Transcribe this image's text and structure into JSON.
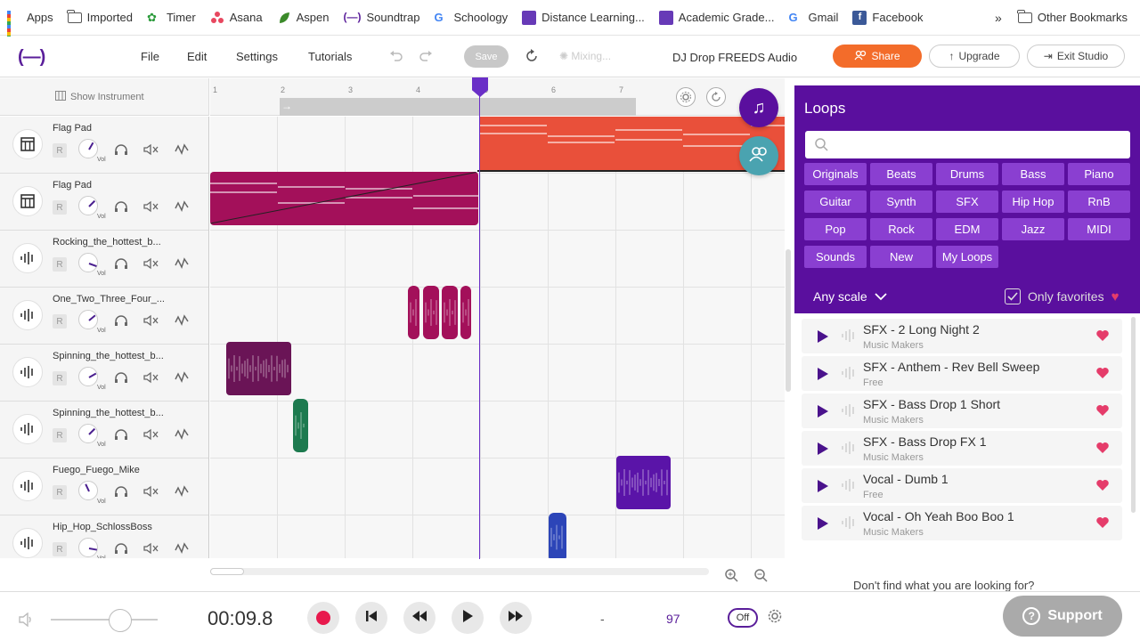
{
  "bookmarks": [
    {
      "label": "Apps",
      "icon": "apps-grid-icon"
    },
    {
      "label": "Imported",
      "icon": "folder-icon"
    },
    {
      "label": "Timer",
      "icon": "timer-icon"
    },
    {
      "label": "Asana",
      "icon": "asana-icon"
    },
    {
      "label": "Aspen",
      "icon": "aspen-icon"
    },
    {
      "label": "Soundtrap",
      "icon": "soundtrap-icon"
    },
    {
      "label": "Schoology",
      "icon": "google-icon"
    },
    {
      "label": "Distance Learning...",
      "icon": "forms-icon"
    },
    {
      "label": "Academic Grade...",
      "icon": "forms-icon"
    },
    {
      "label": "Gmail",
      "icon": "google-icon"
    },
    {
      "label": "Facebook",
      "icon": "facebook-icon"
    }
  ],
  "bookmarks_more": "»",
  "bookmarks_other": "Other Bookmarks",
  "header": {
    "logo": "(—)",
    "menu": [
      "File",
      "Edit",
      "Settings",
      "Tutorials"
    ],
    "save_label": "Save",
    "mixing_label": "Mixing...",
    "project_title": "DJ Drop FREEDS Audio",
    "share_label": "Share",
    "upgrade_label": "Upgrade",
    "exit_label": "Exit Studio"
  },
  "left_panel": {
    "show_instrument_label": "Show Instrument"
  },
  "ruler": {
    "ticks": [
      "1",
      "2",
      "3",
      "4",
      "5",
      "6",
      "7"
    ]
  },
  "tracks": [
    {
      "name": "Flag Pad",
      "type": "instrument",
      "record_label": "R",
      "vol_label": "Vol"
    },
    {
      "name": "Flag Pad",
      "type": "instrument",
      "record_label": "R",
      "vol_label": "Vol"
    },
    {
      "name": "Rocking_the_hottest_b...",
      "type": "audio",
      "record_label": "R",
      "vol_label": "Vol"
    },
    {
      "name": "One_Two_Three_Four_...",
      "type": "audio",
      "record_label": "R",
      "vol_label": "Vol"
    },
    {
      "name": "Spinning_the_hottest_b...",
      "type": "audio",
      "record_label": "R",
      "vol_label": "Vol"
    },
    {
      "name": "Spinning_the_hottest_b...",
      "type": "audio",
      "record_label": "R",
      "vol_label": "Vol"
    },
    {
      "name": "Fuego_Fuego_Mike",
      "type": "audio",
      "record_label": "R",
      "vol_label": "Vol"
    },
    {
      "name": "Hip_Hop_SchlossBoss",
      "type": "audio",
      "record_label": "R",
      "vol_label": "Vol"
    }
  ],
  "clip_colors": {
    "flag_pad_1": "#e9503a",
    "flag_pad_2": "#a3105a",
    "one_two": "#a3105a",
    "spinning_1": "#6a1456",
    "spinning_2": "#1d7a4f",
    "fuego": "#5a14a8",
    "hiphop": "#2c45b8"
  },
  "loops_panel": {
    "title": "Loops",
    "search_placeholder": "",
    "categories": [
      "Originals",
      "Beats",
      "Drums",
      "Bass",
      "Piano",
      "Guitar",
      "Synth",
      "SFX",
      "Hip Hop",
      "RnB",
      "Pop",
      "Rock",
      "EDM",
      "Jazz",
      "MIDI",
      "Sounds",
      "New",
      "My Loops"
    ],
    "scale_label": "Any scale",
    "favorites_label": "Only favorites",
    "items": [
      {
        "name": "SFX - 2 Long Night 2",
        "sub": "Music Makers"
      },
      {
        "name": "SFX - Anthem - Rev Bell Sweep",
        "sub": "Free"
      },
      {
        "name": "SFX - Bass Drop 1 Short",
        "sub": "Music Makers"
      },
      {
        "name": "SFX - Bass Drop FX 1",
        "sub": "Music Makers"
      },
      {
        "name": "Vocal - Dumb 1",
        "sub": "Free"
      },
      {
        "name": "Vocal - Oh Yeah Boo Boo 1",
        "sub": "Music Makers"
      }
    ],
    "more_text": "Don't find what you are looking for?"
  },
  "transport": {
    "time": "00:09.8",
    "key": "-",
    "bpm": "97",
    "metronome_label": "Off",
    "support_label": "Support"
  },
  "colors": {
    "brand": "#5a0f9e",
    "accent": "#f36c2a",
    "teal": "#4aa3b0"
  }
}
